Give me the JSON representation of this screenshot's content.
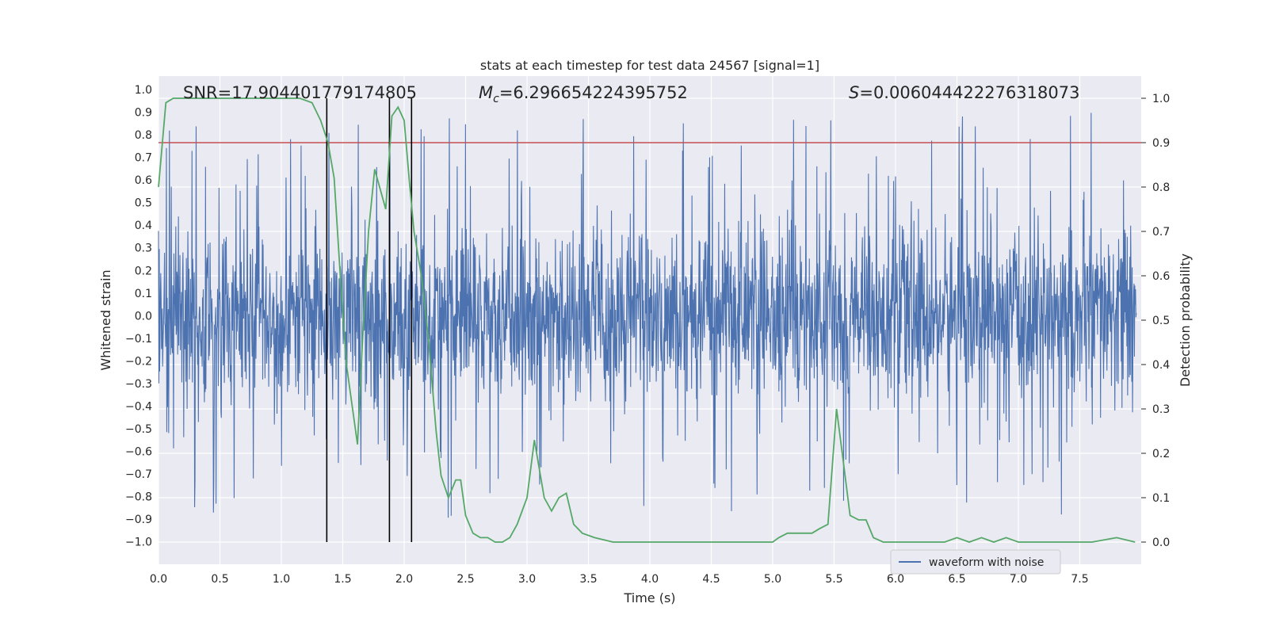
{
  "chart_data": {
    "type": "line",
    "title": "stats at each timestep for test data 24567 [signal=1]",
    "xlabel": "Time (s)",
    "ylabel_left": "Whitened strain",
    "ylabel_right": "Detection probability",
    "xlim": [
      0.0,
      8.0
    ],
    "ylim_left": [
      -1.1,
      1.06
    ],
    "ylim_right": [
      -0.05,
      1.05
    ],
    "x_ticks": [
      "0.0",
      "0.5",
      "1.0",
      "1.5",
      "2.0",
      "2.5",
      "3.0",
      "3.5",
      "4.0",
      "4.5",
      "5.0",
      "5.5",
      "6.0",
      "6.5",
      "7.0",
      "7.5"
    ],
    "y_ticks_left": [
      "1.0",
      "0.9",
      "0.8",
      "0.7",
      "0.6",
      "0.5",
      "0.4",
      "0.3",
      "0.2",
      "0.1",
      "0.0",
      "-0.1",
      "-0.2",
      "-0.3",
      "-0.4",
      "-0.5",
      "-0.6",
      "-0.7",
      "-0.8",
      "-0.9",
      "-1.0"
    ],
    "y_ticks_right": [
      "1.0",
      "0.9",
      "0.8",
      "0.7",
      "0.6",
      "0.5",
      "0.4",
      "0.3",
      "0.2",
      "0.1",
      "0.0"
    ],
    "grid": true,
    "legend": {
      "position": "bottom-center",
      "entries": [
        "waveform with noise"
      ]
    },
    "annotations": {
      "snr": "SNR=17.904401779174805",
      "mc_symbol": "M",
      "mc_subscript": "c",
      "mc_value": "=6.296654224395752",
      "s_symbol": "S",
      "s_value": "=0.006044422276318073"
    },
    "threshold_right": 0.9,
    "vertical_lines_x": [
      1.37,
      1.88,
      2.06
    ],
    "series": [
      {
        "name": "waveform with noise",
        "axis": "left",
        "color": "#4c72b0",
        "description": "dense whitened strain noise, envelope approx ±0.4 with spikes to ±0.9"
      },
      {
        "name": "detection probability",
        "axis": "right",
        "color": "#55a868",
        "x": [
          0.0,
          0.06,
          0.12,
          0.3,
          0.6,
          0.9,
          1.0,
          1.15,
          1.25,
          1.32,
          1.38,
          1.43,
          1.48,
          1.53,
          1.58,
          1.62,
          1.66,
          1.71,
          1.76,
          1.8,
          1.85,
          1.9,
          1.95,
          2.0,
          2.04,
          2.08,
          2.14,
          2.2,
          2.26,
          2.3,
          2.36,
          2.42,
          2.46,
          2.5,
          2.56,
          2.62,
          2.68,
          2.74,
          2.8,
          2.86,
          2.92,
          3.0,
          3.06,
          3.14,
          3.2,
          3.26,
          3.32,
          3.38,
          3.45,
          3.55,
          3.7,
          3.85,
          4.0,
          4.5,
          5.0,
          5.05,
          5.12,
          5.2,
          5.28,
          5.32,
          5.38,
          5.45,
          5.52,
          5.58,
          5.63,
          5.7,
          5.76,
          5.82,
          5.9,
          6.0,
          6.2,
          6.4,
          6.5,
          6.6,
          6.7,
          6.8,
          6.9,
          7.0,
          7.1,
          7.2,
          7.4,
          7.6,
          7.8,
          7.95
        ],
        "values": [
          0.8,
          0.99,
          1.0,
          1.0,
          1.0,
          1.0,
          1.0,
          1.0,
          0.99,
          0.95,
          0.9,
          0.82,
          0.6,
          0.4,
          0.3,
          0.22,
          0.45,
          0.7,
          0.84,
          0.8,
          0.75,
          0.96,
          0.98,
          0.95,
          0.82,
          0.7,
          0.6,
          0.45,
          0.25,
          0.15,
          0.1,
          0.14,
          0.14,
          0.06,
          0.02,
          0.01,
          0.01,
          0.0,
          0.0,
          0.01,
          0.04,
          0.1,
          0.23,
          0.1,
          0.07,
          0.1,
          0.11,
          0.04,
          0.02,
          0.01,
          0.0,
          0.0,
          0.0,
          0.0,
          0.0,
          0.01,
          0.02,
          0.02,
          0.02,
          0.02,
          0.03,
          0.04,
          0.3,
          0.17,
          0.06,
          0.05,
          0.05,
          0.01,
          0.0,
          0.0,
          0.0,
          0.0,
          0.01,
          0.0,
          0.01,
          0.0,
          0.01,
          0.0,
          0.0,
          0.0,
          0.0,
          0.0,
          0.01,
          0.0
        ]
      }
    ]
  }
}
